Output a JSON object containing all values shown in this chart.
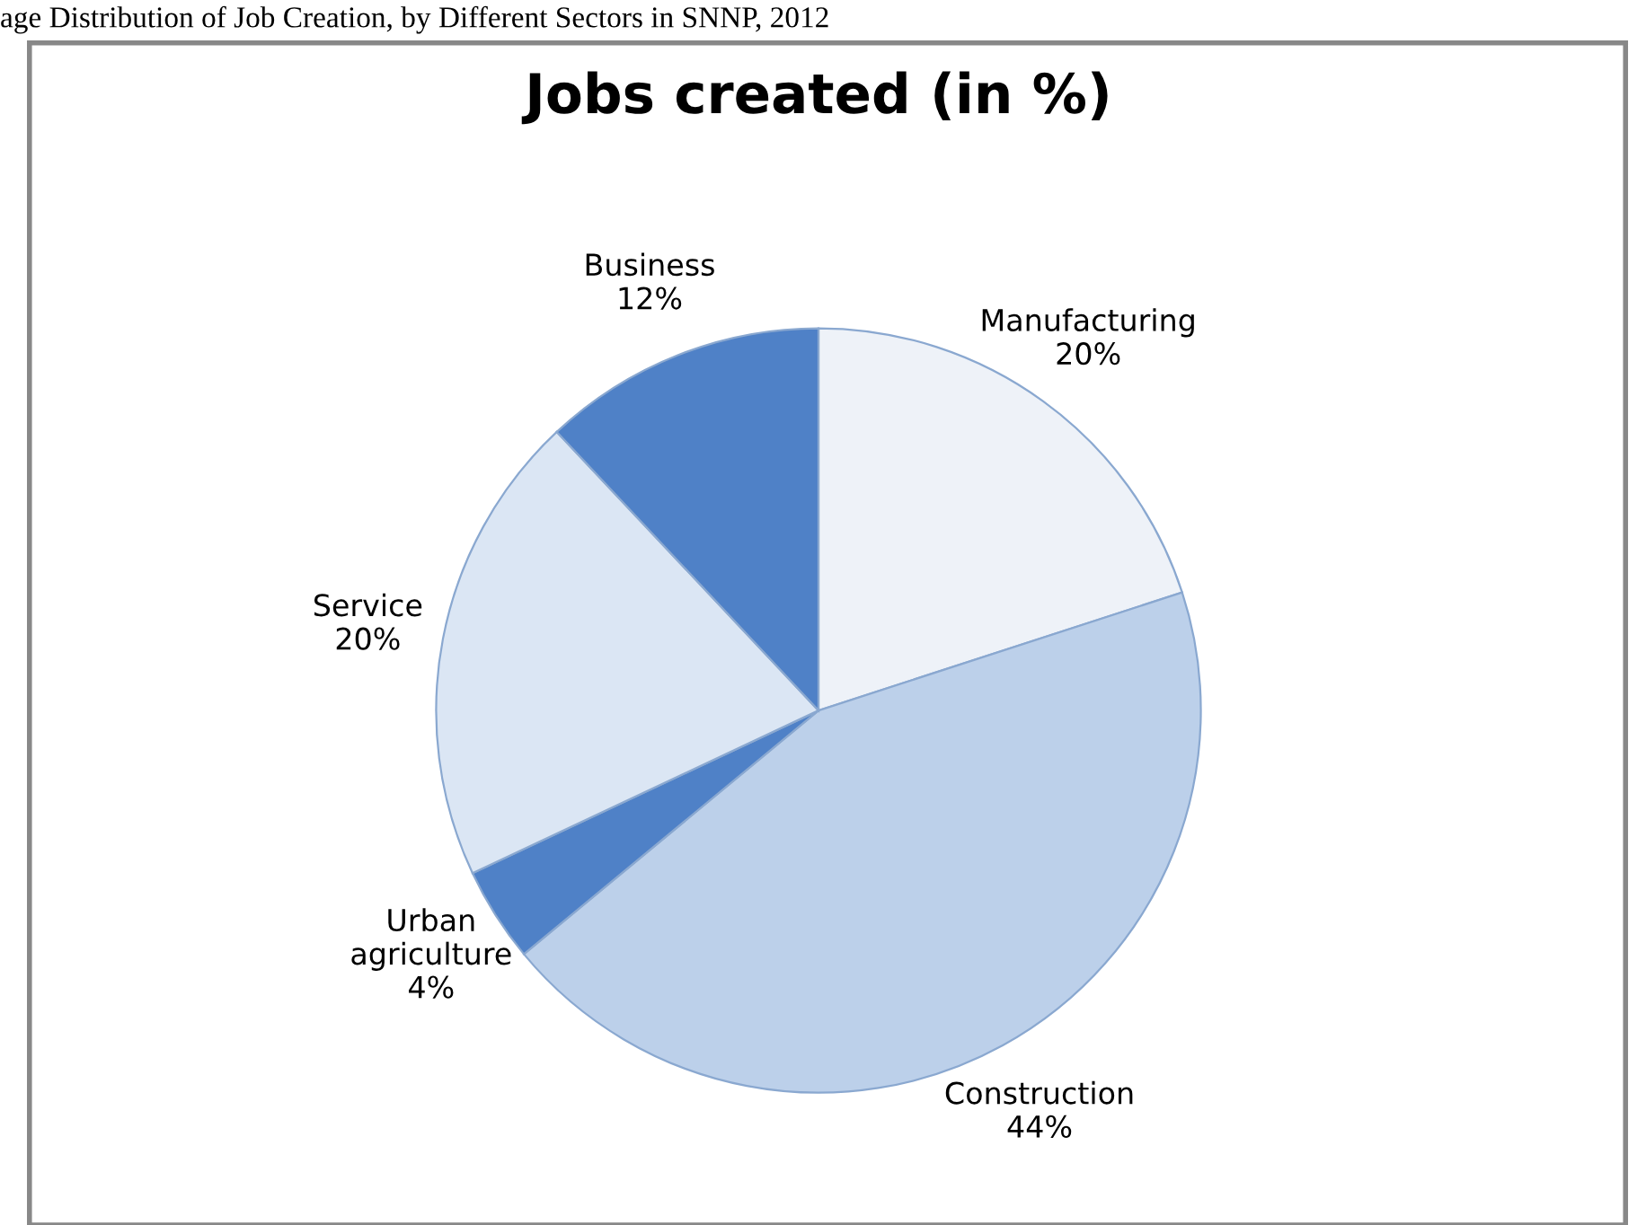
{
  "chart_data": {
    "type": "pie",
    "title": "Jobs created (in %)",
    "annotations": [
      "age Distribution of Job Creation, by Different Sectors in SNNP, 2012"
    ],
    "categories": [
      "Manufacturing",
      "Construction",
      "Urban agriculture",
      "Service",
      "Business"
    ],
    "values": [
      20,
      44,
      4,
      20,
      12
    ],
    "colors": [
      "#eef2f8",
      "#bcd0ea",
      "#4f81c7",
      "#dbe6f4",
      "#4f81c7"
    ],
    "value_labels": [
      "20%",
      "44%",
      "4%",
      "20%",
      "12%"
    ]
  }
}
